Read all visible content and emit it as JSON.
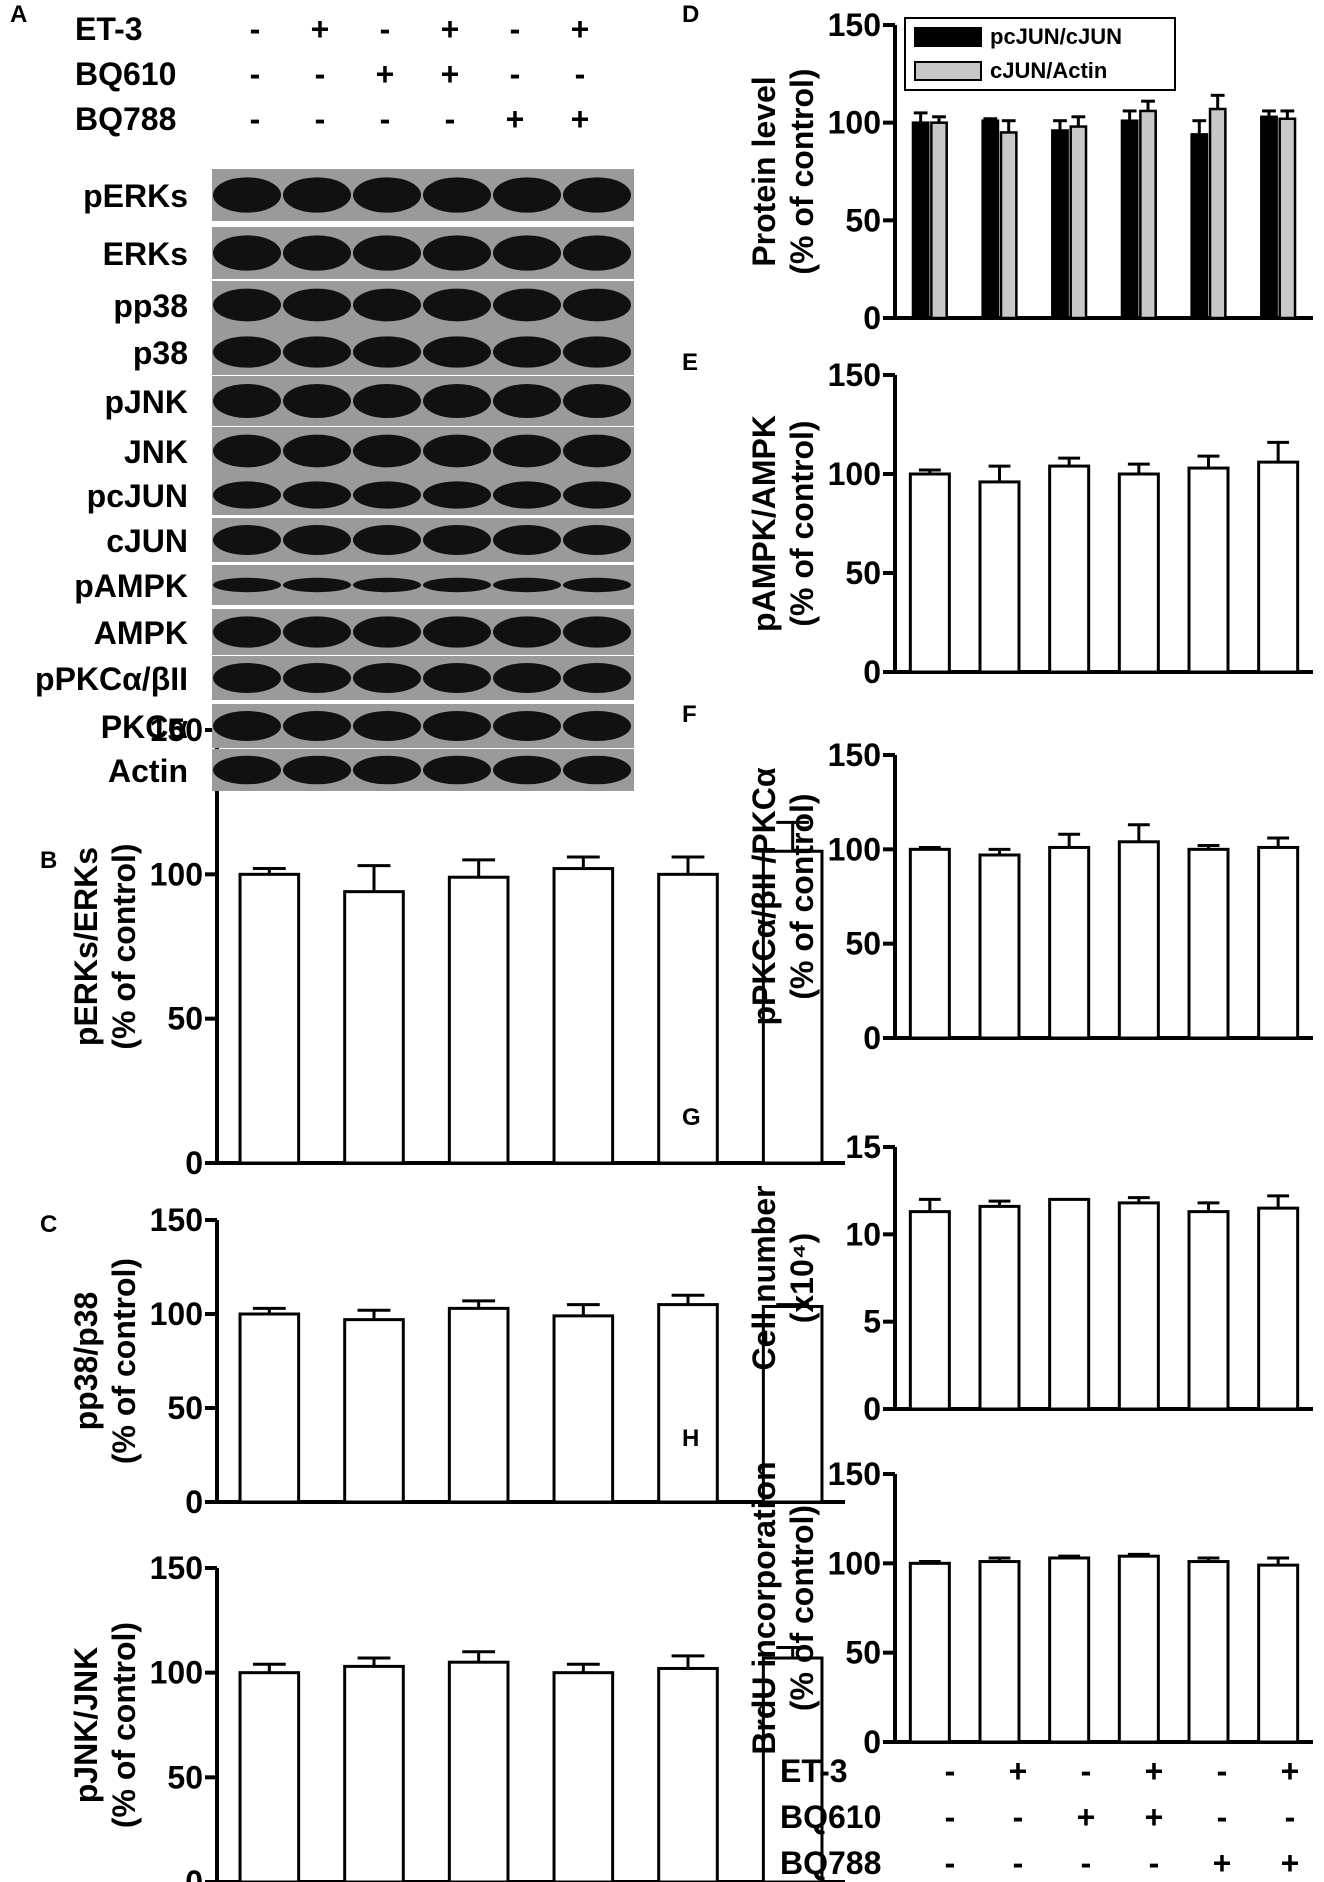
{
  "treatments": {
    "rows": [
      {
        "label": "ET-3",
        "signs": [
          "-",
          "+",
          "-",
          "+",
          "-",
          "+"
        ]
      },
      {
        "label": "BQ610",
        "signs": [
          "-",
          "-",
          "+",
          "+",
          "-",
          "-"
        ]
      },
      {
        "label": "BQ788",
        "signs": [
          "-",
          "-",
          "-",
          "-",
          "+",
          "+"
        ]
      }
    ]
  },
  "blot": {
    "panel": "A",
    "bands": [
      "pERKs",
      "ERKs",
      "pp38",
      "p38",
      "pJNK",
      "JNK",
      "pcJUN",
      "cJUN",
      "pAMPK",
      "AMPK",
      "pPKCα/βII",
      "PKCα",
      "Actin"
    ]
  },
  "chart_data": [
    {
      "panel": "B",
      "type": "bar",
      "ylabel": [
        "pERKs/ERKs",
        "(% of control)"
      ],
      "ylim": [
        0,
        150
      ],
      "yticks": [
        "0",
        "50",
        "100",
        "150"
      ],
      "values": [
        100,
        94,
        99,
        102,
        100,
        108
      ],
      "errors": [
        2,
        9,
        6,
        4,
        6,
        10
      ]
    },
    {
      "panel": "C",
      "type": "bar",
      "ylabel": [
        "pp38/p38",
        "(% of control)"
      ],
      "ylim": [
        0,
        150
      ],
      "yticks": [
        "0",
        "50",
        "100",
        "150"
      ],
      "values": [
        100,
        97,
        103,
        99,
        105,
        104
      ],
      "errors": [
        3,
        5,
        4,
        6,
        5,
        1
      ]
    },
    {
      "panel": "",
      "type": "bar",
      "ylabel": [
        "pJNK/JNK",
        "(% of control)"
      ],
      "ylim": [
        0,
        150
      ],
      "yticks": [
        "0",
        "50",
        "100",
        "150"
      ],
      "values": [
        100,
        103,
        105,
        100,
        102,
        107
      ],
      "errors": [
        4,
        4,
        5,
        4,
        6,
        5
      ]
    },
    {
      "panel": "D",
      "type": "bar",
      "ylabel": [
        "Protein level",
        "(% of control)"
      ],
      "ylim": [
        0,
        150
      ],
      "yticks": [
        "0",
        "50",
        "100",
        "150"
      ],
      "legend_position": "top",
      "series": [
        {
          "name": "pcJUN/cJUN",
          "color": "#000000",
          "values": [
            100,
            101,
            96,
            101,
            94,
            103
          ],
          "errors": [
            5,
            1,
            5,
            5,
            7,
            3
          ]
        },
        {
          "name": "cJUN/Actin",
          "color": "#c8c8c8",
          "values": [
            100,
            95,
            98,
            106,
            107,
            102
          ],
          "errors": [
            3,
            6,
            5,
            5,
            7,
            4
          ]
        }
      ]
    },
    {
      "panel": "E",
      "type": "bar",
      "ylabel": [
        "pAMPK/AMPK",
        "(% of control)"
      ],
      "ylim": [
        0,
        150
      ],
      "yticks": [
        "0",
        "50",
        "100",
        "150"
      ],
      "values": [
        100,
        96,
        104,
        100,
        103,
        106
      ],
      "errors": [
        2,
        8,
        4,
        5,
        6,
        10
      ]
    },
    {
      "panel": "F",
      "type": "bar",
      "ylabel": [
        "pPKCα/βII /PKCα",
        "(% of control)"
      ],
      "ylim": [
        0,
        150
      ],
      "yticks": [
        "0",
        "50",
        "100",
        "150"
      ],
      "values": [
        100,
        97,
        101,
        104,
        100,
        101
      ],
      "errors": [
        1,
        3,
        7,
        9,
        2,
        5
      ]
    },
    {
      "panel": "G",
      "type": "bar",
      "ylabel": [
        "Cell number",
        "(x10⁴)"
      ],
      "ylim": [
        0,
        15
      ],
      "yticks": [
        "0",
        "5",
        "10",
        "15"
      ],
      "values": [
        11.3,
        11.6,
        12.0,
        11.8,
        11.3,
        11.5
      ],
      "errors": [
        0.7,
        0.3,
        0.0,
        0.3,
        0.5,
        0.7
      ]
    },
    {
      "panel": "H",
      "type": "bar",
      "ylabel": [
        "BrdU incorporation",
        "(% of control)"
      ],
      "ylim": [
        0,
        150
      ],
      "yticks": [
        "0",
        "50",
        "100",
        "150"
      ],
      "values": [
        100,
        101,
        103,
        104,
        101,
        99
      ],
      "errors": [
        1,
        2,
        1,
        1,
        2,
        4
      ]
    }
  ]
}
